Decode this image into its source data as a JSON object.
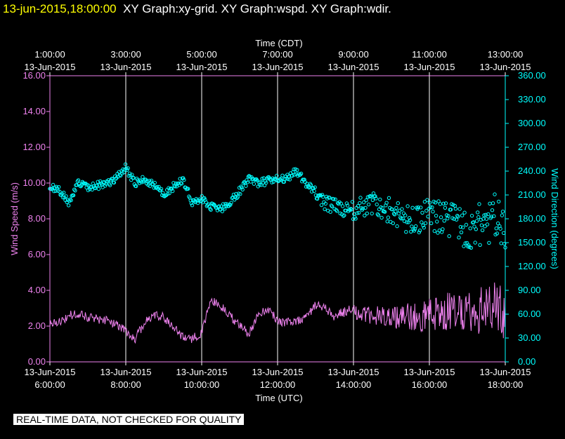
{
  "header": {
    "datetime": "13-jun-2015,18:00:00",
    "titles": "XY Graph:xy-grid.  XY Graph:wspd.  XY Graph:wdir."
  },
  "footer": {
    "notice": "REAL-TIME DATA, NOT CHECKED FOR QUALITY"
  },
  "colors": {
    "speed": "#ee82ee",
    "direction": "#00ffff",
    "grid": "#ffffff",
    "background": "#000000",
    "date_text": "#ffff00"
  },
  "chart_data": {
    "type": "line",
    "top_axis": {
      "title": "Time (CDT)",
      "ticks": [
        {
          "time": "1:00:00",
          "date": "13-Jun-2015"
        },
        {
          "time": "3:00:00",
          "date": "13-Jun-2015"
        },
        {
          "time": "5:00:00",
          "date": "13-Jun-2015"
        },
        {
          "time": "7:00:00",
          "date": "13-Jun-2015"
        },
        {
          "time": "9:00:00",
          "date": "13-Jun-2015"
        },
        {
          "time": "11:00:00",
          "date": "13-Jun-2015"
        },
        {
          "time": "13:00:00",
          "date": "13-Jun-2015"
        }
      ]
    },
    "bottom_axis": {
      "title": "Time (UTC)",
      "ticks": [
        {
          "time": "6:00:00",
          "date": "13-Jun-2015"
        },
        {
          "time": "8:00:00",
          "date": "13-Jun-2015"
        },
        {
          "time": "10:00:00",
          "date": "13-Jun-2015"
        },
        {
          "time": "12:00:00",
          "date": "13-Jun-2015"
        },
        {
          "time": "14:00:00",
          "date": "13-Jun-2015"
        },
        {
          "time": "16:00:00",
          "date": "13-Jun-2015"
        },
        {
          "time": "18:00:00",
          "date": "13-Jun-2015"
        }
      ]
    },
    "xlim_utc_hours": [
      6,
      18
    ],
    "left_axis": {
      "title": "Wind Speed (m/s)",
      "ylim": [
        0,
        16
      ],
      "ticks": [
        "0.00",
        "2.00",
        "4.00",
        "6.00",
        "8.00",
        "10.00",
        "12.00",
        "14.00",
        "16.00"
      ]
    },
    "right_axis": {
      "title": "Wind Direction (degrees)",
      "ylim": [
        0,
        360
      ],
      "ticks": [
        "0.00",
        "30.00",
        "60.00",
        "90.00",
        "120.00",
        "150.00",
        "180.00",
        "210.00",
        "240.00",
        "270.00",
        "300.00",
        "330.00",
        "360.00"
      ]
    },
    "series": [
      {
        "name": "Wind Speed",
        "axis": "left",
        "style": "line",
        "x_utc_hours": [
          6.0,
          6.25,
          6.5,
          6.75,
          7.0,
          7.25,
          7.5,
          7.75,
          8.0,
          8.25,
          8.5,
          8.75,
          9.0,
          9.25,
          9.5,
          9.75,
          10.0,
          10.25,
          10.5,
          10.75,
          11.0,
          11.25,
          11.5,
          11.75,
          12.0,
          12.25,
          12.5,
          12.75,
          13.0,
          13.25,
          13.5,
          13.75,
          14.0,
          14.25,
          14.5,
          14.75,
          15.0,
          15.25,
          15.5,
          15.75,
          16.0,
          16.25,
          16.5,
          16.75,
          17.0,
          17.25,
          17.5,
          17.75,
          18.0
        ],
        "values": [
          2.1,
          2.2,
          2.6,
          2.7,
          2.5,
          2.4,
          2.3,
          2.1,
          1.7,
          1.3,
          2.2,
          2.6,
          2.5,
          2.0,
          1.4,
          1.3,
          1.6,
          3.5,
          3.1,
          2.6,
          2.0,
          1.6,
          2.7,
          3.0,
          2.3,
          2.2,
          2.3,
          2.5,
          3.2,
          3.0,
          2.5,
          2.8,
          2.8,
          2.6,
          2.6,
          2.5,
          2.7,
          2.4,
          2.6,
          2.5,
          2.9,
          2.6,
          2.8,
          2.7,
          3.1,
          2.8,
          3.2,
          3.0,
          2.6
        ]
      },
      {
        "name": "Wind Direction",
        "axis": "right",
        "style": "markers",
        "x_utc_hours": [
          6.0,
          6.25,
          6.5,
          6.75,
          7.0,
          7.25,
          7.5,
          7.75,
          8.0,
          8.25,
          8.5,
          8.75,
          9.0,
          9.25,
          9.5,
          9.75,
          10.0,
          10.25,
          10.5,
          10.75,
          11.0,
          11.25,
          11.5,
          11.75,
          12.0,
          12.25,
          12.5,
          12.75,
          13.0,
          13.25,
          13.5,
          13.75,
          14.0,
          14.25,
          14.5,
          14.75,
          15.0,
          15.25,
          15.5,
          15.75,
          16.0,
          16.25,
          16.5,
          16.75,
          17.0,
          17.25,
          17.5,
          17.75,
          18.0
        ],
        "values": [
          222,
          215,
          200,
          225,
          220,
          222,
          225,
          230,
          245,
          225,
          230,
          222,
          210,
          220,
          230,
          202,
          205,
          195,
          192,
          200,
          215,
          230,
          225,
          228,
          230,
          232,
          240,
          225,
          215,
          200,
          195,
          192,
          190,
          195,
          200,
          195,
          190,
          185,
          175,
          180,
          185,
          180,
          180,
          175,
          160,
          170,
          175,
          185,
          160
        ]
      }
    ]
  }
}
